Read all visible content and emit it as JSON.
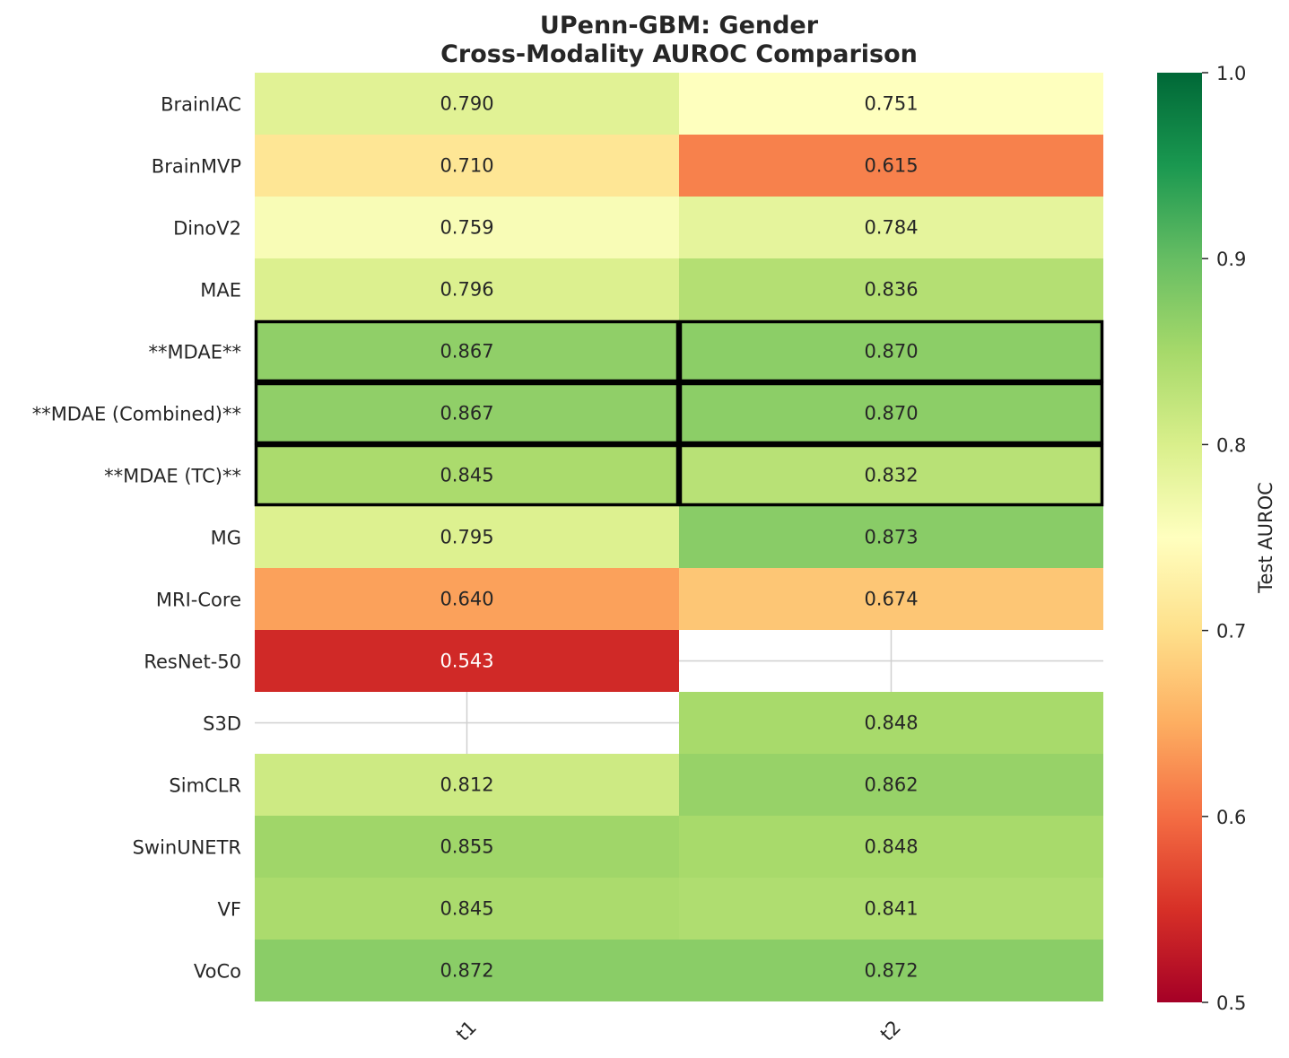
{
  "chart_data": {
    "type": "heatmap",
    "title_line1": "UPenn-GBM: Gender",
    "title_line2": "Cross-Modality AUROC Comparison",
    "x_categories": [
      "t1",
      "t2"
    ],
    "y_categories": [
      "BrainIAC",
      "BrainMVP",
      "DinoV2",
      "MAE",
      "**MDAE**",
      "**MDAE (Combined)**",
      "**MDAE (TC)**",
      "MG",
      "MRI-Core",
      "ResNet-50",
      "S3D",
      "SimCLR",
      "SwinUNETR",
      "VF",
      "VoCo"
    ],
    "values": [
      [
        0.79,
        0.751
      ],
      [
        0.71,
        0.615
      ],
      [
        0.759,
        0.784
      ],
      [
        0.796,
        0.836
      ],
      [
        0.867,
        0.87
      ],
      [
        0.867,
        0.87
      ],
      [
        0.845,
        0.832
      ],
      [
        0.795,
        0.873
      ],
      [
        0.64,
        0.674
      ],
      [
        0.543,
        null
      ],
      [
        null,
        0.848
      ],
      [
        0.812,
        0.862
      ],
      [
        0.855,
        0.848
      ],
      [
        0.845,
        0.841
      ],
      [
        0.872,
        0.872
      ]
    ],
    "highlighted_rows": [
      "**MDAE**",
      "**MDAE (Combined)**",
      "**MDAE (TC)**"
    ],
    "colorbar": {
      "label": "Test AUROC",
      "range": [
        0.5,
        1.0
      ],
      "ticks": [
        "0.5",
        "0.6",
        "0.7",
        "0.8",
        "0.9",
        "1.0"
      ],
      "colormap": "RdYlGn"
    }
  }
}
